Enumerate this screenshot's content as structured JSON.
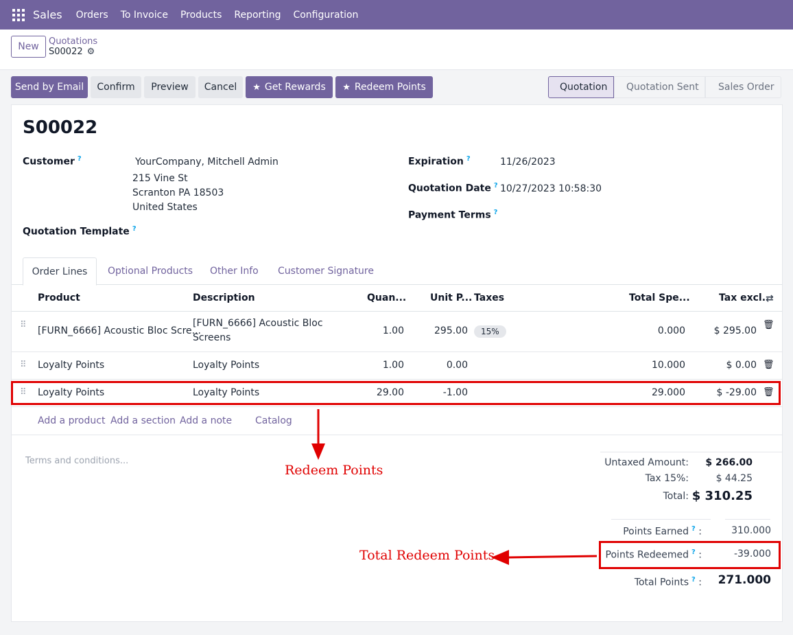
{
  "navbar": {
    "app": "Sales",
    "items": [
      "Orders",
      "To Invoice",
      "Products",
      "Reporting",
      "Configuration"
    ]
  },
  "control": {
    "new_label": "New",
    "breadcrumb": "Quotations",
    "record": "S00022"
  },
  "actions": {
    "send_email": "Send by Email",
    "confirm": "Confirm",
    "preview": "Preview",
    "cancel": "Cancel",
    "get_rewards": "Get Rewards",
    "redeem_points": "Redeem Points"
  },
  "status": {
    "stages": [
      "Quotation",
      "Quotation Sent",
      "Sales Order"
    ],
    "active": "Quotation"
  },
  "form": {
    "title": "S00022",
    "customer_label": "Customer",
    "customer_name": "YourCompany, Mitchell Admin",
    "address_line1": "215 Vine St",
    "address_line2": "Scranton PA 18503",
    "address_line3": "United States",
    "template_label": "Quotation Template",
    "expiration_label": "Expiration",
    "expiration_value": "11/26/2023",
    "date_label": "Quotation Date",
    "date_value": "10/27/2023 10:58:30",
    "terms_label": "Payment Terms",
    "help_mark": "?"
  },
  "tabs": [
    "Order Lines",
    "Optional Products",
    "Other Info",
    "Customer Signature"
  ],
  "table": {
    "headers": {
      "product": "Product",
      "description": "Description",
      "quantity": "Quan...",
      "unit_price": "Unit P...",
      "taxes": "Taxes",
      "total_spent": "Total Spe...",
      "tax_excl": "Tax excl."
    },
    "rows": [
      {
        "product": "[FURN_6666] Acoustic Bloc Scre...",
        "description_l1": "[FURN_6666] Acoustic Bloc",
        "description_l2": "Screens",
        "quantity": "1.00",
        "unit_price": "295.00",
        "taxes": "15%",
        "total_spent": "0.000",
        "tax_excl": "$ 295.00"
      },
      {
        "product": "Loyalty Points",
        "description_l1": "Loyalty Points",
        "description_l2": "",
        "quantity": "1.00",
        "unit_price": "0.00",
        "taxes": "",
        "total_spent": "10.000",
        "tax_excl": "$ 0.00"
      },
      {
        "product": "Loyalty Points",
        "description_l1": "Loyalty Points",
        "description_l2": "",
        "quantity": "29.00",
        "unit_price": "-1.00",
        "taxes": "",
        "total_spent": "29.000",
        "tax_excl": "$ -29.00"
      }
    ],
    "add_links": [
      "Add a product",
      "Add a section",
      "Add a note",
      "Catalog"
    ]
  },
  "terms_placeholder": "Terms and conditions...",
  "totals": {
    "untaxed_label": "Untaxed Amount:",
    "untaxed_value": "$ 266.00",
    "tax_label": "Tax 15%:",
    "tax_value": "$ 44.25",
    "total_label": "Total:",
    "total_value": "$ 310.25"
  },
  "points": {
    "earned_label": "Points Earned",
    "earned_value": "310.000",
    "redeemed_label": "Points Redeemed",
    "redeemed_value": "-39.000",
    "total_label": "Total Points",
    "total_value": "271.000",
    "colon": ":"
  },
  "annotations": {
    "redeem_points": "Redeem Points",
    "total_redeem_points": "Total Redeem Points",
    "color": "#e00000"
  },
  "colors": {
    "brand": "#71639e"
  }
}
